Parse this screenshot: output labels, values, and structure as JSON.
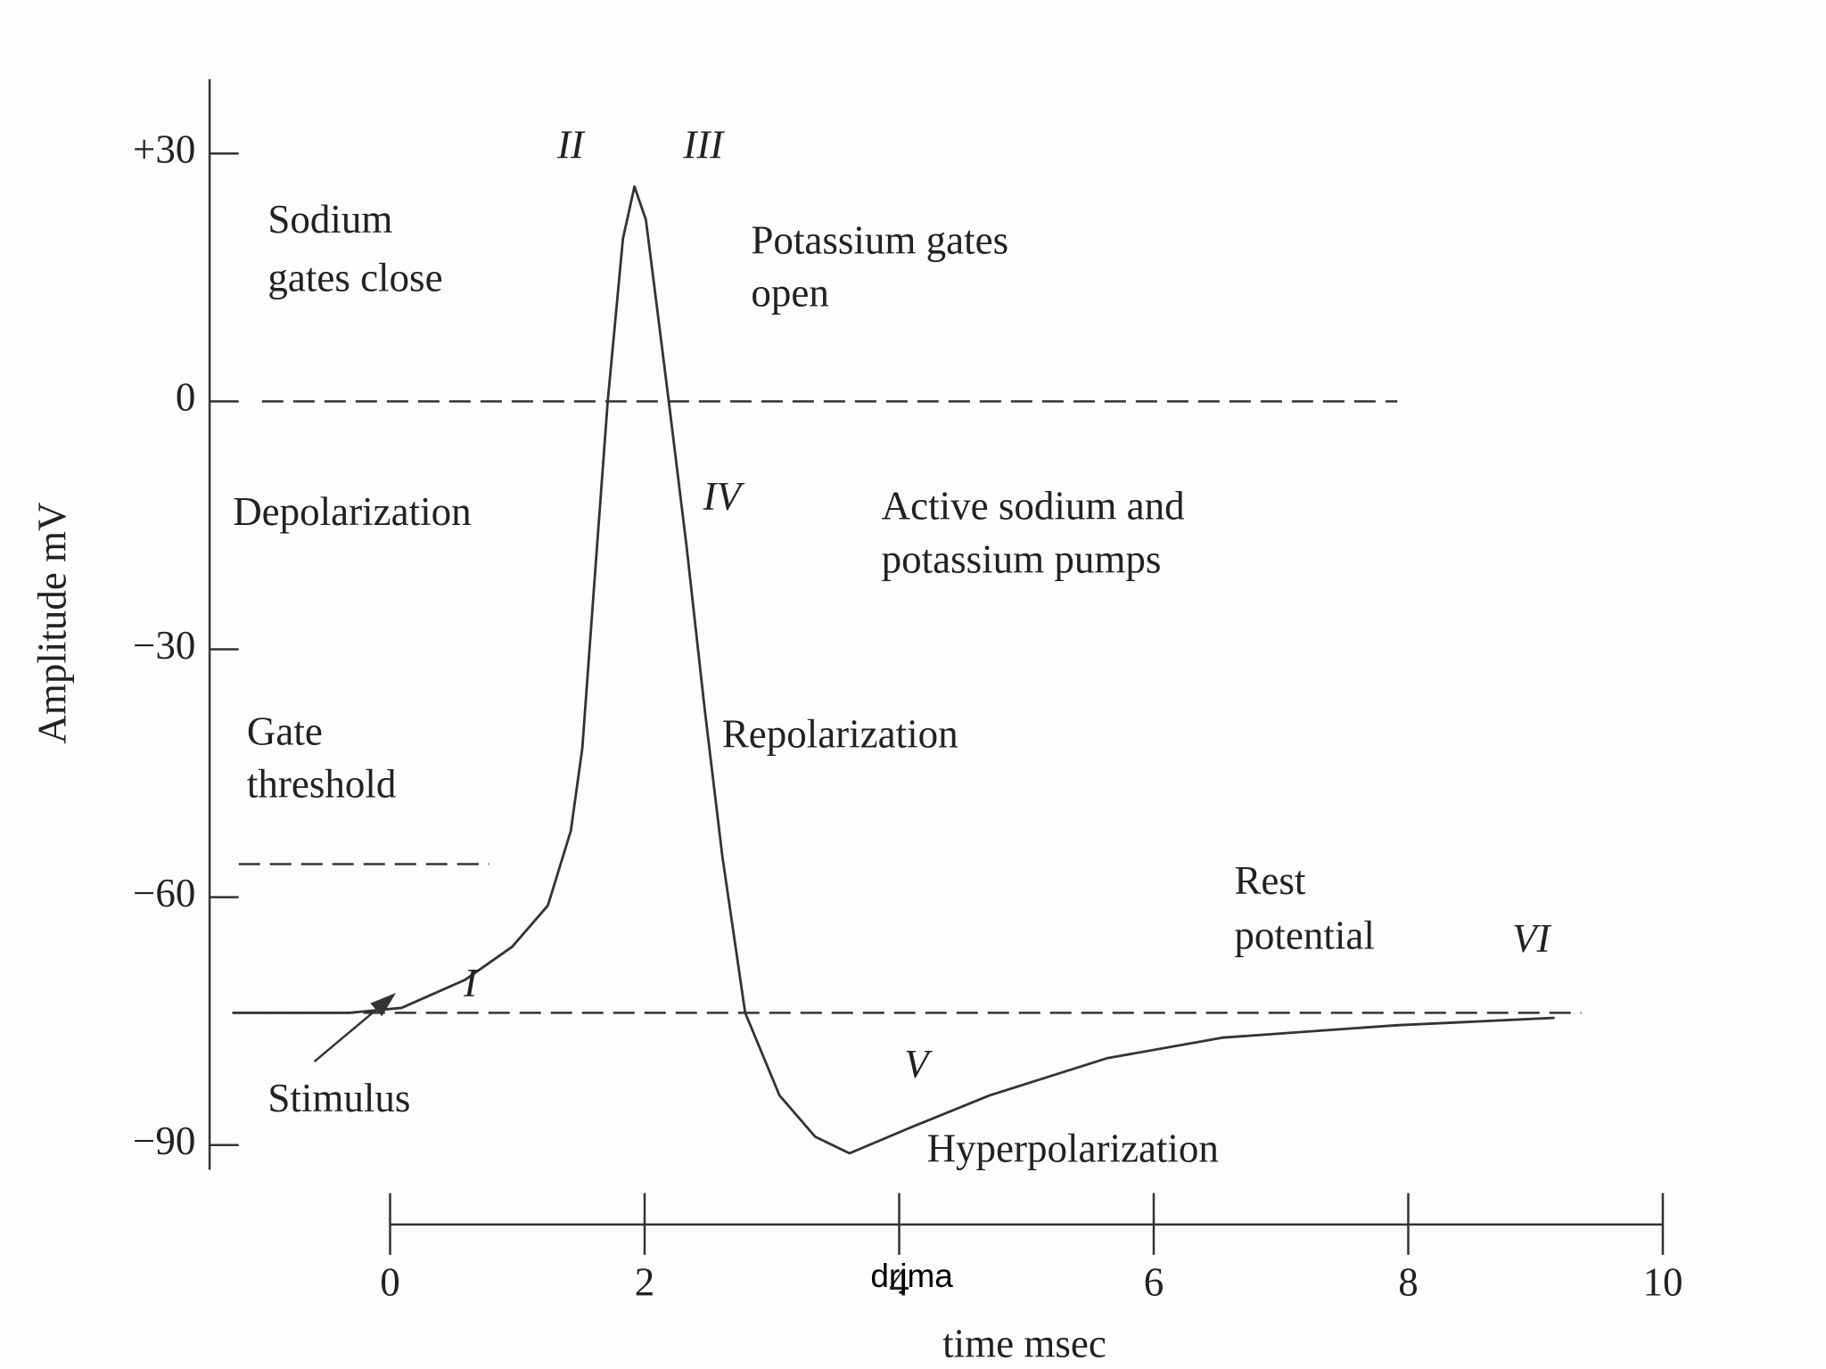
{
  "chart_data": {
    "type": "line",
    "xlabel": "time msec",
    "ylabel": "Amplitude mV",
    "x": [
      -1.24,
      -0.32,
      0.09,
      0.59,
      0.96,
      1.24,
      1.42,
      1.51,
      1.6,
      1.71,
      1.83,
      1.92,
      2.01,
      2.1,
      2.19,
      2.33,
      2.47,
      2.61,
      2.79,
      3.06,
      3.34,
      3.61,
      4.07,
      4.71,
      5.63,
      6.54,
      7.91,
      9.15
    ],
    "values": [
      -74,
      -74,
      -73.4,
      -70,
      -66,
      -61,
      -52,
      -42,
      -23,
      0,
      19.7,
      26,
      22,
      11,
      0,
      -17.6,
      -37,
      -55,
      -74,
      -84,
      -89,
      -91,
      -88,
      -84,
      -79.5,
      -77,
      -75.5,
      -74.6
    ],
    "color": "#333333",
    "xlim": [
      0,
      10
    ],
    "xticks": [
      0,
      2,
      4,
      6,
      8,
      10
    ],
    "ylim": [
      -93,
      39
    ],
    "yticks": [
      {
        "value": 30,
        "label": "+30"
      },
      0,
      {
        "value": -30,
        "label": "−30"
      },
      {
        "value": -60,
        "label": "−60"
      },
      {
        "value": -90,
        "label": "−90"
      }
    ],
    "reference_lines": [
      0,
      -56,
      -74
    ],
    "annotations": [
      {
        "lines": [
          "Sodium",
          "gates close"
        ]
      },
      {
        "lines": [
          "Potassium gates",
          "open"
        ]
      },
      {
        "lines": [
          "Depolarization"
        ]
      },
      {
        "lines": [
          "Active sodium and",
          "potassium pumps"
        ]
      },
      {
        "lines": [
          "Gate",
          "threshold"
        ]
      },
      {
        "lines": [
          "Repolarization"
        ]
      },
      {
        "lines": [
          "Rest",
          "potential"
        ]
      },
      {
        "lines": [
          "Stimulus"
        ]
      },
      {
        "lines": [
          "Hyperpolarization"
        ]
      }
    ],
    "phases": [
      "I",
      "II",
      "III",
      "IV",
      "V",
      "VI"
    ],
    "watermark": "drjma"
  }
}
